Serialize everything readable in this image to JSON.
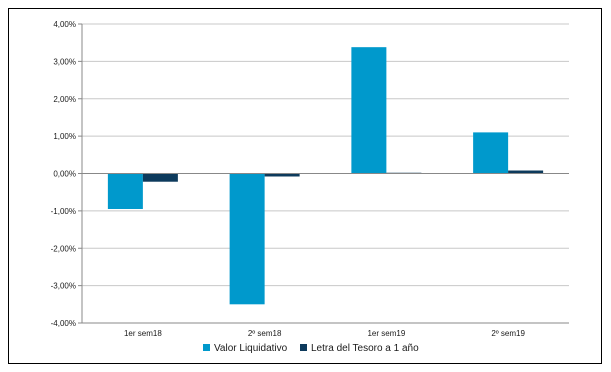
{
  "chart_data": {
    "type": "bar",
    "title": "",
    "xlabel": "",
    "ylabel": "",
    "categories": [
      "1er sem18",
      "2º sem18",
      "1er sem19",
      "2º sem19"
    ],
    "series": [
      {
        "name": "Valor Liquidativo",
        "values": [
          -0.95,
          -3.5,
          3.38,
          1.1
        ],
        "color": "#0099cc"
      },
      {
        "name": "Letra del Tesoro a 1 año",
        "values": [
          -0.22,
          -0.08,
          0.02,
          0.08
        ],
        "color": "#0d3a5c"
      }
    ],
    "ylim": [
      -4,
      4
    ],
    "yticks": [
      4,
      3,
      2,
      1,
      0,
      -1,
      -2,
      -3,
      -4
    ],
    "ytick_labels": [
      "4,00%",
      "3,00%",
      "2,00%",
      "1,00%",
      "0,00%",
      "-1,00%",
      "-2,00%",
      "-3,00%",
      "-4,00%"
    ],
    "grid": true,
    "legend_position": "bottom"
  }
}
